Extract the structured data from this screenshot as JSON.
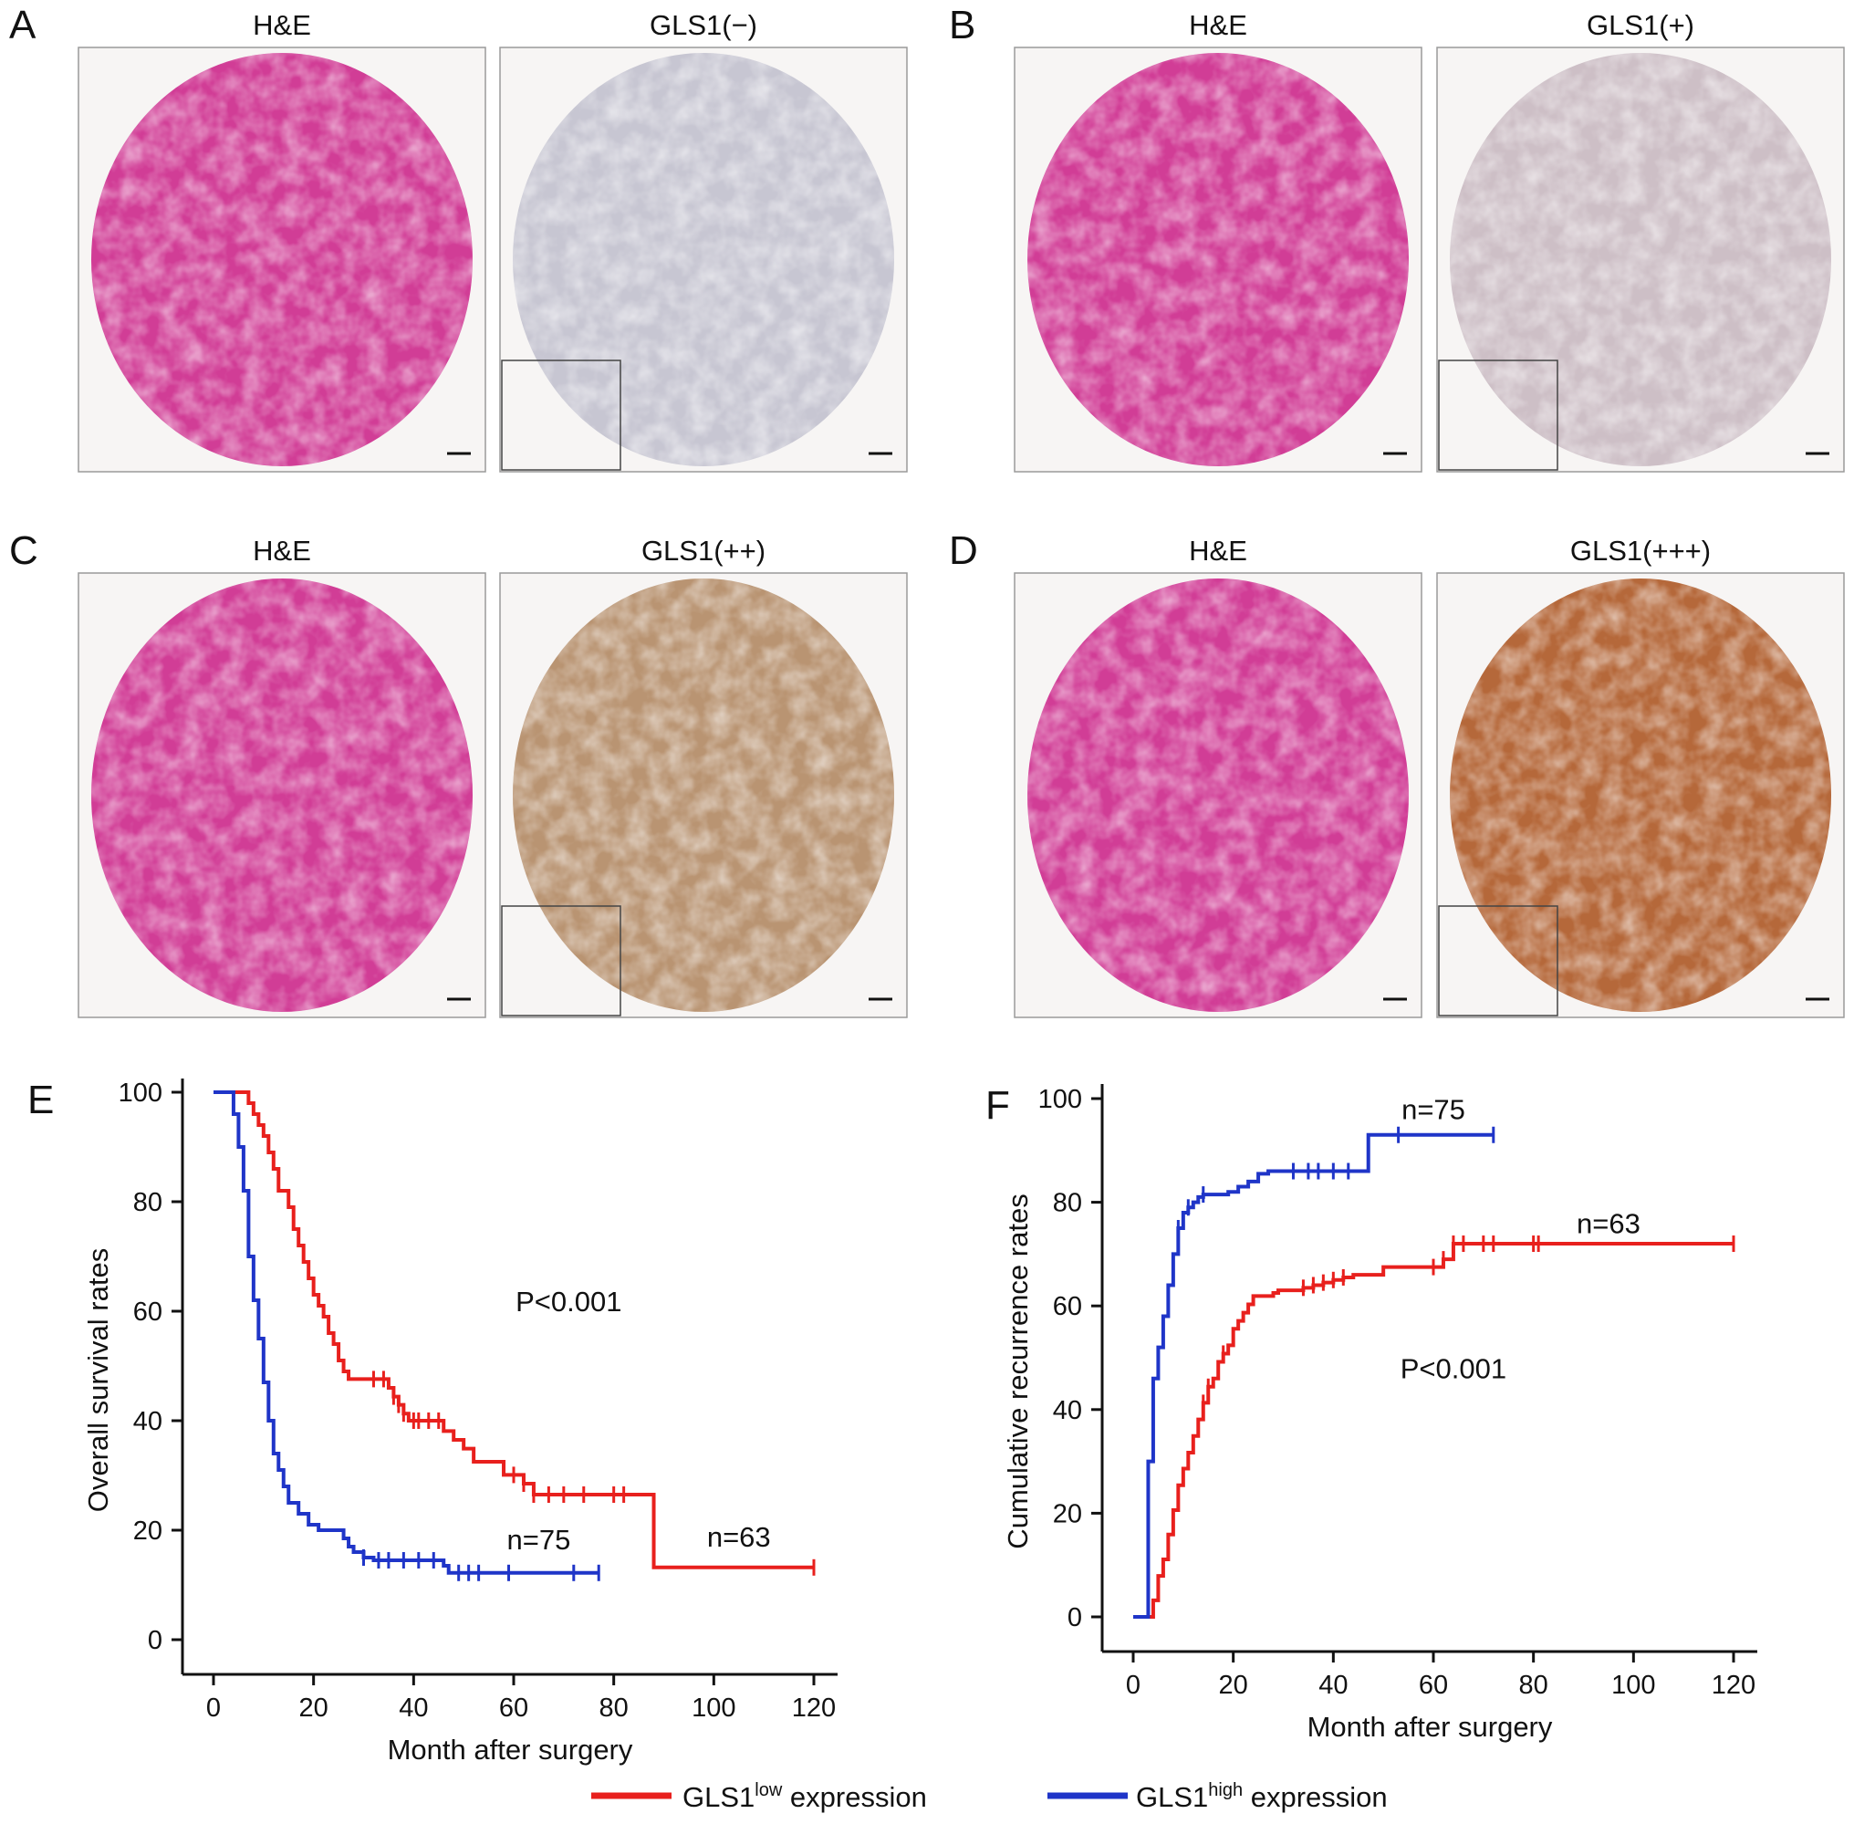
{
  "micro_panels": [
    {
      "letter": "A",
      "left_title": "H&E",
      "right_title": "GLS1(−)",
      "right_stain": "#c7c6d2"
    },
    {
      "letter": "B",
      "left_title": "H&E",
      "right_title": "GLS1(+)",
      "right_stain": "#cdbfc6"
    },
    {
      "letter": "C",
      "left_title": "H&E",
      "right_title": "GLS1(++)",
      "right_stain": "#b99472"
    },
    {
      "letter": "D",
      "left_title": "H&E",
      "right_title": "GLS1(+++)",
      "right_stain": "#b5683a"
    }
  ],
  "colors": {
    "he_stain": "#d13d96",
    "low": "#e8201d",
    "high": "#1f35c8"
  },
  "legend": {
    "low": {
      "prefix": "GLS1",
      "sup": "low",
      "suffix": " expression"
    },
    "high": {
      "prefix": "GLS1",
      "sup": "high",
      "suffix": " expression"
    }
  },
  "chart_data": [
    {
      "panel": "E",
      "type": "line",
      "xlabel": "Month after surgery",
      "ylabel": "Overall survival rates",
      "xlim": [
        0,
        120
      ],
      "ylim": [
        0,
        100
      ],
      "xticks": [
        0,
        20,
        40,
        60,
        80,
        100,
        120
      ],
      "yticks": [
        0,
        20,
        40,
        60,
        80,
        100
      ],
      "annotations": [
        {
          "text": "P<0.001",
          "x": 71,
          "y": 60
        },
        {
          "text": "n=75",
          "x": 65,
          "y": 16.5
        },
        {
          "text": "n=63",
          "x": 105,
          "y": 17
        }
      ],
      "series": [
        {
          "name": "GLS1 low expression",
          "color": "#e8201d",
          "x": [
            0,
            5,
            7,
            8,
            9,
            10,
            11,
            12,
            13,
            15,
            16,
            17,
            18,
            19,
            20,
            21,
            22,
            23,
            24,
            25,
            26,
            27,
            28,
            30,
            32,
            35,
            36,
            37,
            38,
            39,
            40,
            42,
            46,
            48,
            50,
            52,
            55,
            58,
            60,
            61,
            62,
            64,
            66,
            70,
            72,
            76,
            80,
            84,
            88,
            100,
            120
          ],
          "y": [
            100,
            100,
            98,
            96,
            94,
            92,
            89,
            86,
            82,
            79,
            75,
            72,
            69,
            66,
            63,
            61,
            59,
            56,
            54,
            51,
            49,
            47.6,
            47.6,
            47.6,
            47.6,
            46,
            44.4,
            42.9,
            41.3,
            40,
            40,
            40,
            38.1,
            36.5,
            34.9,
            32.5,
            32.5,
            30.1,
            30.1,
            30.1,
            28.5,
            26.5,
            26.5,
            26.5,
            26.5,
            26.5,
            26.5,
            26.5,
            13.2,
            13.2,
            13.2
          ]
        },
        {
          "name": "GLS1 high expression",
          "color": "#1f35c8",
          "x": [
            0,
            4,
            5,
            6,
            7,
            8,
            9,
            10,
            11,
            12,
            13,
            14,
            15,
            17,
            19,
            21,
            23,
            26,
            27,
            28,
            30,
            32,
            35,
            37,
            40,
            42,
            46,
            47,
            50,
            52,
            55,
            58,
            60,
            65,
            70,
            75,
            77
          ],
          "y": [
            100,
            96,
            90,
            82,
            70,
            62,
            55,
            47,
            40,
            34,
            31,
            28,
            25,
            23,
            21,
            20,
            20,
            18.5,
            17,
            16,
            15,
            14.5,
            14.5,
            14.5,
            14.5,
            14.5,
            13.5,
            12.2,
            12.2,
            12.2,
            12.2,
            12.2,
            12.2,
            12.2,
            12.2,
            12.2,
            12.2
          ],
          "censor_x": [
            30,
            33,
            35,
            38,
            41,
            44,
            49,
            51,
            53,
            59,
            72,
            77
          ]
        },
        {
          "name": "GLS1 low censored",
          "color": "#e8201d",
          "censor_x": [
            32,
            34,
            36,
            37,
            38,
            40,
            41,
            43,
            45,
            60,
            62,
            64,
            67,
            70,
            74,
            80,
            82,
            120
          ]
        }
      ]
    },
    {
      "panel": "F",
      "type": "line",
      "xlabel": "Month after surgery",
      "ylabel": "Cumulative recurrence rates",
      "xlim": [
        0,
        120
      ],
      "ylim": [
        0,
        100
      ],
      "xticks": [
        0,
        20,
        40,
        60,
        80,
        100,
        120
      ],
      "yticks": [
        0,
        20,
        40,
        60,
        80,
        100
      ],
      "annotations": [
        {
          "text": "n=75",
          "x": 60,
          "y": 96
        },
        {
          "text": "n=63",
          "x": 95,
          "y": 74
        },
        {
          "text": "P<0.001",
          "x": 64,
          "y": 46
        }
      ],
      "series": [
        {
          "name": "GLS1 low expression",
          "color": "#e8201d",
          "x": [
            0,
            3,
            4,
            5,
            6,
            7,
            8,
            9,
            10,
            11,
            12,
            13,
            14,
            15,
            16,
            17,
            18,
            19,
            20,
            21,
            22,
            23,
            24,
            25,
            26,
            27,
            28,
            29,
            30,
            32,
            34,
            36,
            38,
            40,
            42,
            44,
            50,
            55,
            60,
            62,
            64,
            70,
            80,
            100,
            120
          ],
          "y": [
            0,
            0,
            3.2,
            7.9,
            11.1,
            15.9,
            20.6,
            25.4,
            28.6,
            31.7,
            34.9,
            38.1,
            41.3,
            44.4,
            46,
            49.2,
            50.8,
            52.4,
            55.6,
            57.1,
            58.7,
            60.3,
            61.9,
            61.9,
            61.9,
            61.9,
            62.5,
            63,
            63,
            63,
            63.5,
            64,
            64.5,
            65,
            65.5,
            66,
            67.5,
            67.5,
            67.5,
            69,
            72,
            72,
            72,
            72,
            72
          ]
        },
        {
          "name": "GLS1 high expression",
          "color": "#1f35c8",
          "x": [
            0,
            2,
            3,
            4,
            5,
            6,
            7,
            8,
            9,
            10,
            11,
            12,
            13,
            14,
            15,
            17,
            19,
            21,
            23,
            25,
            27,
            30,
            35,
            40,
            45,
            47,
            50,
            55,
            60,
            65,
            70,
            72
          ],
          "y": [
            0,
            0,
            30,
            46,
            52,
            58,
            64,
            70,
            75,
            78,
            79,
            80,
            81,
            81.5,
            81.5,
            81.5,
            82,
            83,
            84,
            85.5,
            86,
            86,
            86,
            86,
            86,
            93,
            93,
            93,
            93,
            93,
            93,
            93
          ],
          "censor_x": [
            9,
            11,
            14,
            32,
            35,
            37,
            40,
            43,
            53,
            72
          ]
        },
        {
          "name": "GLS1 low censored",
          "color": "#e8201d",
          "censor_x": [
            14,
            15,
            18,
            34,
            36,
            38,
            40,
            42,
            60,
            62,
            64,
            66,
            70,
            72,
            80,
            81,
            120
          ]
        }
      ]
    }
  ]
}
